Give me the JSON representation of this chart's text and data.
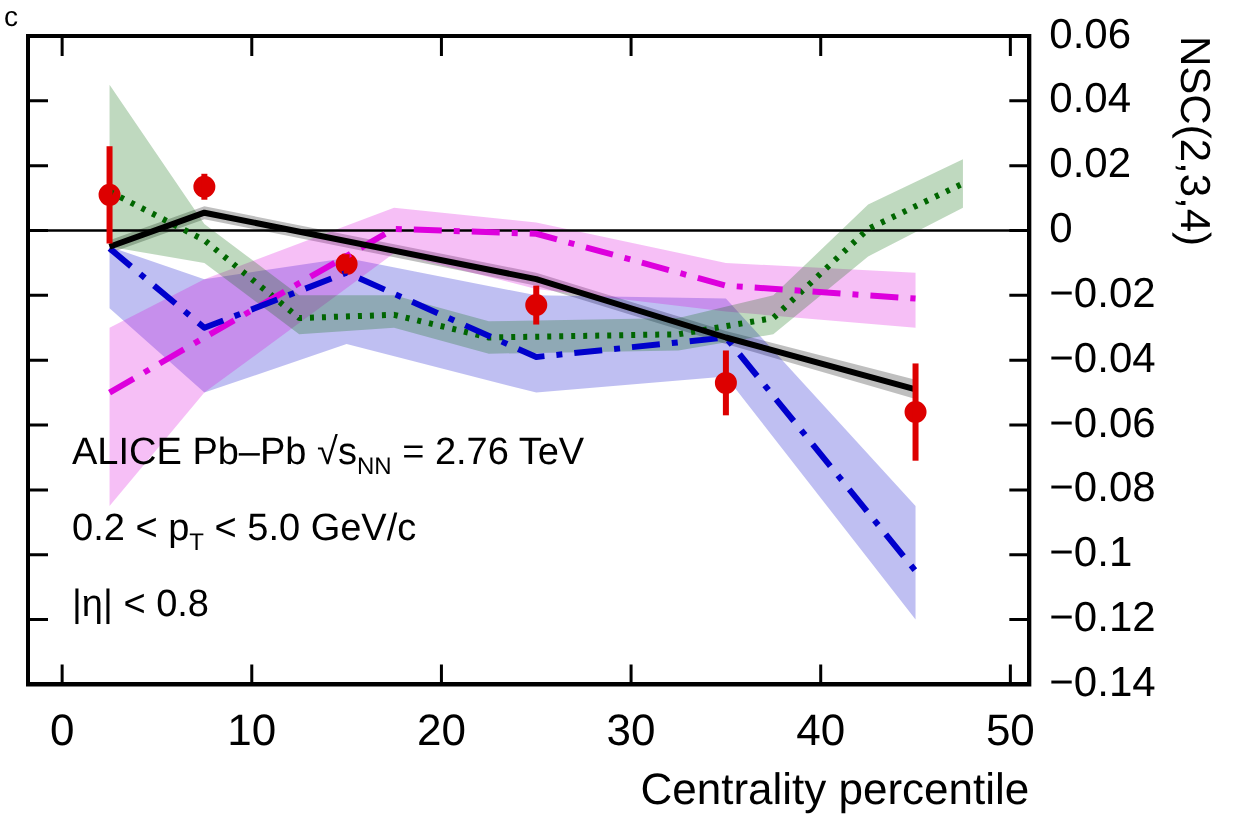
{
  "chart_data": {
    "type": "line",
    "xlabel": "Centrality percentile",
    "ylabel": "NSC(2,3,4)",
    "xlim": [
      -1.8,
      51
    ],
    "xticks": [
      0,
      10,
      20,
      30,
      40,
      50
    ],
    "ylim": [
      -0.14,
      0.06
    ],
    "yticks": [
      0.06,
      0.04,
      0.02,
      0,
      -0.02,
      -0.04,
      -0.06,
      -0.08,
      -0.1,
      -0.12,
      -0.14
    ],
    "grid": false,
    "legend": false,
    "ref_lines": [
      {
        "axis": "y",
        "value": 0,
        "color": "#000000"
      }
    ],
    "annotations": [
      "c",
      "ALICE Pb–Pb √s$_{NN}$ = 2.76 TeV",
      "0.2 < p$_{T}$ < 5.0 GeV/c",
      "|η| < 0.8"
    ],
    "series": [
      {
        "color": "#000000",
        "line_style": "solid",
        "x": [
          2.5,
          7.5,
          25,
          35,
          45
        ],
        "values": [
          -0.005,
          0.0055,
          -0.015,
          -0.033,
          -0.049
        ],
        "lower": [
          -0.007,
          0.0035,
          -0.017,
          -0.035,
          -0.052
        ],
        "upper": [
          -0.003,
          0.0075,
          -0.013,
          -0.031,
          -0.046
        ]
      },
      {
        "color": "#0000cc",
        "line_style": "dashed",
        "x": [
          2.5,
          7.5,
          15,
          25,
          35,
          45
        ],
        "values": [
          -0.0055,
          -0.03,
          -0.013,
          -0.039,
          -0.033,
          -0.105
        ],
        "lower": [
          -0.024,
          -0.05,
          -0.035,
          -0.05,
          -0.045,
          -0.12
        ],
        "upper": [
          -0.005,
          -0.015,
          -0.0085,
          -0.02,
          -0.021,
          -0.085
        ]
      },
      {
        "color": "#dd00dd",
        "line_style": "dashed",
        "x": [
          2.5,
          7.5,
          17.5,
          25,
          35,
          45
        ],
        "values": [
          -0.05,
          -0.033,
          0.0005,
          -0.001,
          -0.017,
          -0.021
        ],
        "lower": [
          -0.085,
          -0.05,
          -0.007,
          -0.018,
          -0.025,
          -0.03
        ],
        "upper": [
          -0.03,
          -0.015,
          0.007,
          0.0025,
          -0.01,
          -0.013
        ]
      },
      {
        "color": "#006600",
        "line_style": "dotted",
        "x": [
          2.5,
          7.5,
          12.5,
          17.5,
          22.5,
          32.5,
          37.5,
          42.5,
          47.5
        ],
        "values": [
          0.012,
          -0.003,
          -0.027,
          -0.026,
          -0.033,
          -0.032,
          -0.027,
          0.0005,
          0.0145
        ],
        "lower": [
          -0.005,
          -0.01,
          -0.032,
          -0.03,
          -0.038,
          -0.037,
          -0.032,
          -0.008,
          0.007
        ],
        "upper": [
          0.045,
          0.002,
          -0.02,
          -0.02,
          -0.028,
          -0.027,
          -0.02,
          0.008,
          0.022
        ]
      },
      {
        "type": "scatter",
        "color": "#dd0000",
        "marker": "circle",
        "x": [
          2.5,
          7.5,
          15,
          25,
          35,
          45
        ],
        "values": [
          0.011,
          0.0135,
          -0.0103,
          -0.023,
          -0.047,
          -0.056
        ],
        "errors": [
          0.015,
          0.004,
          0.003,
          0.006,
          0.01,
          0.015
        ]
      }
    ]
  }
}
